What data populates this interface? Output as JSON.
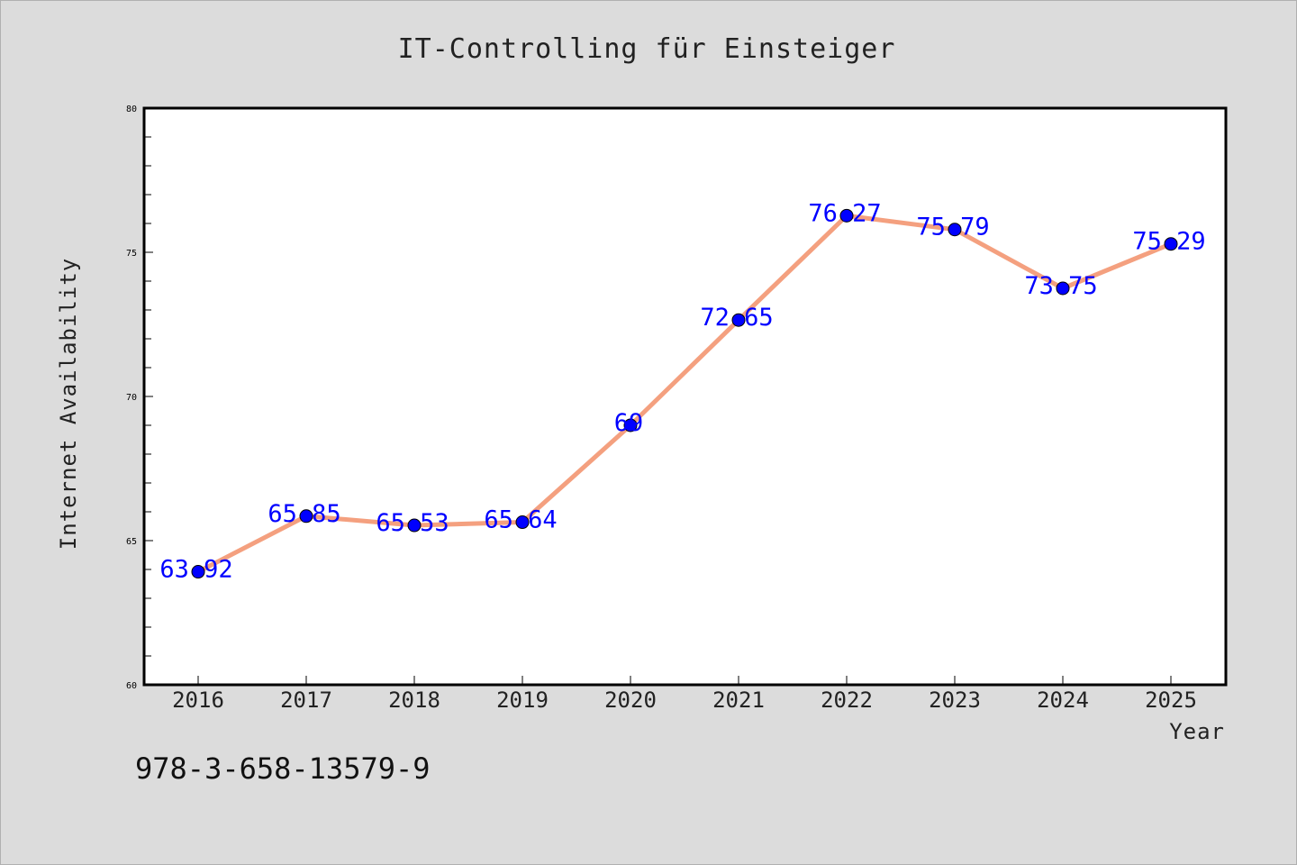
{
  "chart_data": {
    "type": "line",
    "title": "IT-Controlling für Einsteiger",
    "xlabel": "Year",
    "ylabel": "Internet Availability",
    "categories": [
      "2016",
      "2017",
      "2018",
      "2019",
      "2020",
      "2021",
      "2022",
      "2023",
      "2024",
      "2025"
    ],
    "series": [
      {
        "values": [
          63.92,
          65.85,
          65.53,
          65.64,
          69,
          72.65,
          76.27,
          75.79,
          73.75,
          75.29
        ],
        "labels": [
          "63.92",
          "65.85",
          "65.53",
          "65.64",
          "69",
          "72.65",
          "76.27",
          "75.79",
          "73.75",
          "75.29"
        ],
        "line_color": "#f4a07f",
        "marker_color": "#0000ff"
      }
    ],
    "ylim": [
      60,
      80
    ],
    "yticks": [
      "60",
      "65",
      "70",
      "75",
      "80"
    ],
    "grid": false,
    "legend": "none"
  },
  "footer": {
    "isbn": "978-3-658-13579-9"
  },
  "colors": {
    "background": "#dcdcdc",
    "plot_background": "#ffffff"
  }
}
